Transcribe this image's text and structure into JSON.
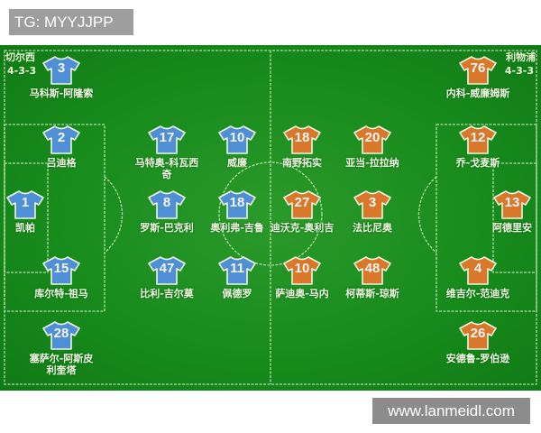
{
  "tag_label": "TG: MYYJJPP",
  "watermark": "www.lanmeidl.com",
  "colors": {
    "home": "#4f8fd6",
    "away": "#d9772a",
    "pitch": "#178a1c"
  },
  "home": {
    "team": "切尔西",
    "formation": "4-3-3",
    "players": [
      {
        "number": "3",
        "name": "马科斯-阿隆索"
      },
      {
        "number": "2",
        "name": "吕迪格"
      },
      {
        "number": "1",
        "name": "凯帕"
      },
      {
        "number": "15",
        "name": "库尔特-祖马"
      },
      {
        "number": "28",
        "name": "塞萨尔-阿斯皮利奎塔"
      },
      {
        "number": "17",
        "name": "马特奥-科瓦西奇"
      },
      {
        "number": "8",
        "name": "罗斯-巴克利"
      },
      {
        "number": "47",
        "name": "比利-吉尔莫"
      },
      {
        "number": "10",
        "name": "威廉"
      },
      {
        "number": "18",
        "name": "奥利弗-吉鲁"
      },
      {
        "number": "11",
        "name": "佩德罗"
      }
    ]
  },
  "away": {
    "team": "利物浦",
    "formation": "4-3-3",
    "players": [
      {
        "number": "76",
        "name": "内科-威廉姆斯"
      },
      {
        "number": "12",
        "name": "乔-戈麦斯"
      },
      {
        "number": "13",
        "name": "阿德里安"
      },
      {
        "number": "4",
        "name": "维吉尔-范迪克"
      },
      {
        "number": "26",
        "name": "安德鲁-罗伯逊"
      },
      {
        "number": "18",
        "name": "南野拓实"
      },
      {
        "number": "27",
        "name": "迪沃克-奥利吉"
      },
      {
        "number": "10",
        "name": "萨迪奥-马内"
      },
      {
        "number": "20",
        "name": "亚当-拉拉纳"
      },
      {
        "number": "3",
        "name": "法比尼奥"
      },
      {
        "number": "48",
        "name": "柯蒂斯-琼斯"
      }
    ]
  }
}
